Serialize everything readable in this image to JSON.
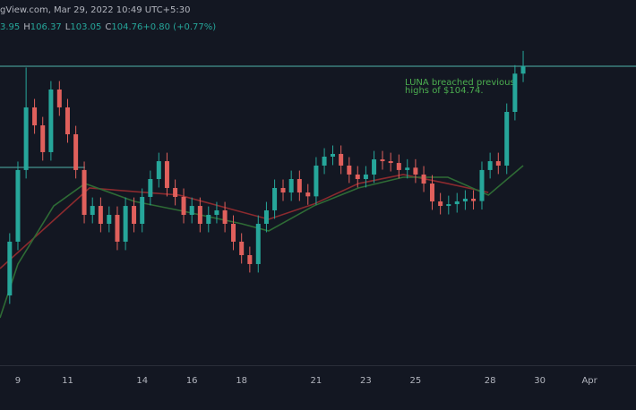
{
  "chart_data": {
    "type": "candlestick",
    "header": "gView.com, Mar 29, 2022 10:49 UTC+5:30",
    "legend_segments": [
      {
        "text": "3.95",
        "color": "#26a69a"
      },
      {
        "text": "H",
        "color": "#b2b5be"
      },
      {
        "text": "106.37",
        "color": "#26a69a"
      },
      {
        "text": "L",
        "color": "#b2b5be"
      },
      {
        "text": "103.05",
        "color": "#26a69a"
      },
      {
        "text": "C",
        "color": "#b2b5be"
      },
      {
        "text": "104.76",
        "color": "#26a69a"
      },
      {
        "text": "+0.80 (+0.77%)",
        "color": "#26a69a"
      }
    ],
    "annotation": [
      "LUNA breached previous",
      "highs of $104.74."
    ],
    "annotation_color": "#4caf50",
    "up_color": "#26a69a",
    "down_color": "#e0605c",
    "grid": false,
    "xlim": [
      8.28,
      33.87
    ],
    "ylim": [
      72.94,
      111.78
    ],
    "xticks": [
      9,
      11,
      14,
      16,
      18,
      21,
      23,
      25,
      28,
      30,
      {
        "value": 32,
        "label": "Apr"
      }
    ],
    "x": [
      8.67,
      9,
      9.33,
      9.67,
      10,
      10.33,
      10.67,
      11,
      11.33,
      11.67,
      12,
      12.33,
      12.67,
      13,
      13.33,
      13.67,
      14,
      14.33,
      14.67,
      15,
      15.33,
      15.67,
      16,
      16.33,
      16.67,
      17,
      17.33,
      17.67,
      18,
      18.33,
      18.67,
      19,
      19.33,
      19.67,
      20,
      20.33,
      20.67,
      21,
      21.33,
      21.67,
      22,
      22.33,
      22.67,
      23,
      23.33,
      23.67,
      24,
      24.33,
      24.67,
      25,
      25.33,
      25.67,
      26,
      26.33,
      26.67,
      27,
      27.33,
      27.67,
      28,
      28.33,
      28.67,
      29,
      29.33
    ],
    "open": [
      80.36,
      86.08,
      93.7,
      100.36,
      98.45,
      95.6,
      102.26,
      100.36,
      97.5,
      93.7,
      88.93,
      89.88,
      87.98,
      88.93,
      86.08,
      89.88,
      87.98,
      90.84,
      92.74,
      94.64,
      91.79,
      90.84,
      88.93,
      89.88,
      87.98,
      88.93,
      89.41,
      87.98,
      86.08,
      84.65,
      83.7,
      87.98,
      89.41,
      91.79,
      91.31,
      92.74,
      91.31,
      90.9,
      94.17,
      95.12,
      95.41,
      94.17,
      93.22,
      92.74,
      93.22,
      94.83,
      94.64,
      94.45,
      93.7,
      93.95,
      93.22,
      92.26,
      90.36,
      89.88,
      90.07,
      90.36,
      90.65,
      90.4,
      93.7,
      94.64,
      94.17,
      99.88,
      103.95
    ],
    "high": [
      86.98,
      94.6,
      104.6,
      101.26,
      99.35,
      103.16,
      103.16,
      101.26,
      98.4,
      94.6,
      90.78,
      90.78,
      89.83,
      89.83,
      90.78,
      90.78,
      91.74,
      93.64,
      95.54,
      95.54,
      92.69,
      91.74,
      90.78,
      90.78,
      89.83,
      90.31,
      90.31,
      88.88,
      86.98,
      85.55,
      88.88,
      90.31,
      92.69,
      92.69,
      93.64,
      93.64,
      92.21,
      95.07,
      96.02,
      96.31,
      96.31,
      95.07,
      94.12,
      94.12,
      95.73,
      95.73,
      95.54,
      95.35,
      94.85,
      94.85,
      94.12,
      93.16,
      91.26,
      90.97,
      91.26,
      91.55,
      91.55,
      94.6,
      95.54,
      95.54,
      100.78,
      104.85,
      106.37
    ],
    "low": [
      79.46,
      85.18,
      92.8,
      97.55,
      94.7,
      94.7,
      99.46,
      96.6,
      92.8,
      88.03,
      88.03,
      87.08,
      87.08,
      85.18,
      85.18,
      87.08,
      87.08,
      89.94,
      91.84,
      90.89,
      89.94,
      88.03,
      88.03,
      87.08,
      87.08,
      88.03,
      87.08,
      85.18,
      83.75,
      82.8,
      82.8,
      87.08,
      88.51,
      90.41,
      90.41,
      90.41,
      90.0,
      90.0,
      93.27,
      94.22,
      93.27,
      92.32,
      91.84,
      91.84,
      92.32,
      93.74,
      93.55,
      92.8,
      92.8,
      92.32,
      91.36,
      89.46,
      88.98,
      88.98,
      89.17,
      89.46,
      89.5,
      89.5,
      92.8,
      93.27,
      93.27,
      98.98,
      103.05
    ],
    "close": [
      86.08,
      93.7,
      100.36,
      98.45,
      95.6,
      102.26,
      100.36,
      97.5,
      93.7,
      88.93,
      89.88,
      87.98,
      88.93,
      86.08,
      89.88,
      87.98,
      90.84,
      92.74,
      94.64,
      91.79,
      90.84,
      88.93,
      89.88,
      87.98,
      88.93,
      89.41,
      87.98,
      86.08,
      84.65,
      83.7,
      87.98,
      89.41,
      91.79,
      91.31,
      92.74,
      91.31,
      90.9,
      94.17,
      95.12,
      95.41,
      94.17,
      93.22,
      92.74,
      93.22,
      94.83,
      94.64,
      94.45,
      93.7,
      93.95,
      93.22,
      92.26,
      90.36,
      89.88,
      90.07,
      90.36,
      90.65,
      90.4,
      93.7,
      94.64,
      94.17,
      99.88,
      103.95,
      104.76
    ],
    "overlays": [
      {
        "color": "#8b2a2e",
        "x": [
          8.28,
          11.88,
          15.49,
          19.09,
          20.9,
          22.7,
          24.5,
          26.3,
          27.93
        ],
        "values": [
          83.22,
          91.79,
          91.03,
          88.46,
          90.07,
          92.26,
          93.22,
          92.26,
          91.31
        ]
      },
      {
        "color": "#2e6b35",
        "x": [
          8.28,
          9.0,
          10.44,
          11.7,
          13.69,
          15.49,
          18.01,
          19.09,
          20.9,
          22.7,
          24.5,
          26.3,
          27.93,
          29.33
        ],
        "values": [
          77.98,
          83.7,
          89.88,
          92.26,
          90.36,
          89.41,
          87.98,
          87.22,
          89.88,
          91.79,
          92.93,
          92.93,
          91.03,
          94.17
        ]
      }
    ],
    "levels": [
      {
        "value": 104.74,
        "x": [
          8.28,
          33.87
        ],
        "color": "#4fb3aa"
      },
      {
        "value": 93.98,
        "x": [
          8.28,
          11.7
        ],
        "color": "#4fb3aa"
      }
    ]
  }
}
